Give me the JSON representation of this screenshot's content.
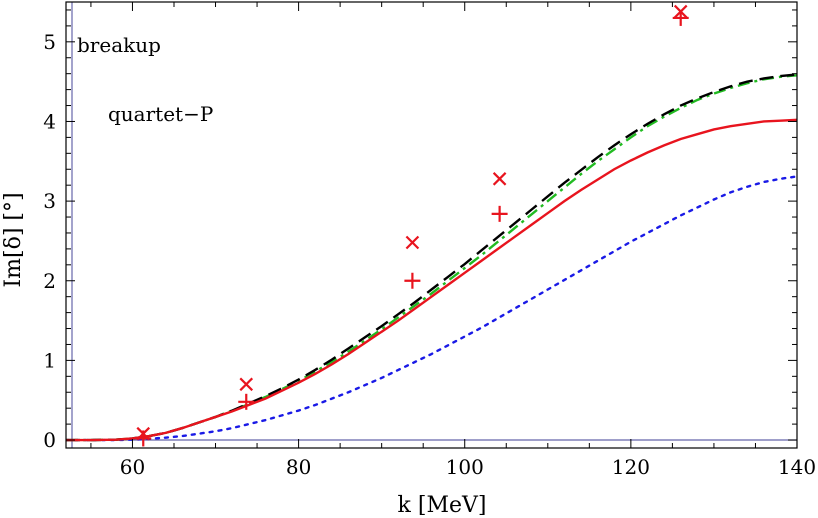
{
  "chart_data": {
    "type": "line",
    "xlabel": "k [MeV]",
    "ylabel": "Im[δ] [°]",
    "xlim": [
      52,
      140
    ],
    "ylim": [
      -0.1,
      5.5
    ],
    "x_ticks": [
      60,
      80,
      100,
      120,
      140
    ],
    "y_ticks": [
      0,
      1,
      2,
      3,
      4,
      5
    ],
    "annotations": [
      "breakup",
      "quartet−P"
    ],
    "colors": {
      "frame": "#000000",
      "reference_lines": "#6666aa",
      "red_solid": "#e8141e",
      "black_dashed": "#000000",
      "green_dashdot": "#22bb22",
      "blue_dotted": "#1a1ae6",
      "markers": "#e8141e"
    },
    "series": [
      {
        "style": "solid",
        "x": [
          52,
          55,
          58,
          60,
          62,
          64,
          66,
          68,
          70,
          72,
          74,
          76,
          78,
          80,
          82,
          84,
          86,
          88,
          90,
          92,
          94,
          96,
          98,
          100,
          102,
          104,
          106,
          108,
          110,
          112,
          114,
          116,
          118,
          120,
          122,
          124,
          126,
          128,
          130,
          132,
          134,
          136,
          138,
          140
        ],
        "y": [
          0.0,
          0.0,
          0.005,
          0.02,
          0.05,
          0.09,
          0.15,
          0.22,
          0.29,
          0.36,
          0.44,
          0.52,
          0.62,
          0.72,
          0.83,
          0.95,
          1.08,
          1.22,
          1.36,
          1.5,
          1.65,
          1.8,
          1.95,
          2.1,
          2.25,
          2.4,
          2.55,
          2.7,
          2.85,
          3.0,
          3.14,
          3.27,
          3.4,
          3.51,
          3.61,
          3.7,
          3.78,
          3.84,
          3.9,
          3.94,
          3.97,
          4.0,
          4.01,
          4.02
        ]
      },
      {
        "style": "dashed",
        "x": [
          52,
          55,
          58,
          60,
          62,
          64,
          66,
          68,
          70,
          72,
          74,
          76,
          78,
          80,
          82,
          84,
          86,
          88,
          90,
          92,
          94,
          96,
          98,
          100,
          102,
          104,
          106,
          108,
          110,
          112,
          114,
          116,
          118,
          120,
          122,
          124,
          126,
          128,
          130,
          132,
          134,
          136,
          138,
          140
        ],
        "y": [
          0.0,
          0.0,
          0.005,
          0.02,
          0.05,
          0.09,
          0.15,
          0.22,
          0.29,
          0.37,
          0.46,
          0.55,
          0.65,
          0.76,
          0.88,
          1.01,
          1.15,
          1.29,
          1.43,
          1.58,
          1.73,
          1.89,
          2.05,
          2.21,
          2.38,
          2.55,
          2.72,
          2.89,
          3.06,
          3.23,
          3.39,
          3.55,
          3.7,
          3.84,
          3.97,
          4.09,
          4.2,
          4.29,
          4.37,
          4.44,
          4.5,
          4.54,
          4.57,
          4.59
        ]
      },
      {
        "style": "dash-dot",
        "x": [
          52,
          55,
          58,
          60,
          62,
          64,
          66,
          68,
          70,
          72,
          74,
          76,
          78,
          80,
          82,
          84,
          86,
          88,
          90,
          92,
          94,
          96,
          98,
          100,
          102,
          104,
          106,
          108,
          110,
          112,
          114,
          116,
          118,
          120,
          122,
          124,
          126,
          128,
          130,
          132,
          134,
          136,
          138,
          140
        ],
        "y": [
          0.0,
          0.0,
          0.005,
          0.02,
          0.05,
          0.09,
          0.15,
          0.22,
          0.29,
          0.37,
          0.45,
          0.54,
          0.64,
          0.74,
          0.86,
          0.98,
          1.11,
          1.25,
          1.39,
          1.54,
          1.69,
          1.84,
          2.0,
          2.16,
          2.32,
          2.49,
          2.66,
          2.83,
          3.0,
          3.17,
          3.34,
          3.5,
          3.65,
          3.8,
          3.94,
          4.06,
          4.17,
          4.27,
          4.35,
          4.42,
          4.48,
          4.53,
          4.56,
          4.58
        ]
      },
      {
        "style": "dotted",
        "x": [
          52,
          55,
          58,
          60,
          62,
          64,
          66,
          68,
          70,
          72,
          74,
          76,
          78,
          80,
          82,
          84,
          86,
          88,
          90,
          92,
          94,
          96,
          98,
          100,
          102,
          104,
          106,
          108,
          110,
          112,
          114,
          116,
          118,
          120,
          122,
          124,
          126,
          128,
          130,
          132,
          134,
          136,
          138,
          140
        ],
        "y": [
          0.0,
          0.0,
          0.0,
          0.005,
          0.015,
          0.03,
          0.05,
          0.08,
          0.11,
          0.15,
          0.2,
          0.25,
          0.31,
          0.37,
          0.44,
          0.52,
          0.6,
          0.69,
          0.78,
          0.88,
          0.98,
          1.08,
          1.19,
          1.3,
          1.41,
          1.53,
          1.65,
          1.77,
          1.89,
          2.01,
          2.13,
          2.25,
          2.37,
          2.49,
          2.6,
          2.71,
          2.82,
          2.92,
          3.02,
          3.11,
          3.18,
          3.24,
          3.28,
          3.31
        ]
      }
    ],
    "markers_x": [
      {
        "x": 61.3,
        "y": 0.08
      },
      {
        "x": 73.7,
        "y": 0.7
      },
      {
        "x": 93.7,
        "y": 2.48
      },
      {
        "x": 104.2,
        "y": 3.28
      },
      {
        "x": 126.0,
        "y": 5.38
      }
    ],
    "markers_plus": [
      {
        "x": 61.3,
        "y": 0.02
      },
      {
        "x": 73.7,
        "y": 0.48
      },
      {
        "x": 93.7,
        "y": 2.0
      },
      {
        "x": 104.2,
        "y": 2.84
      },
      {
        "x": 126.0,
        "y": 5.3
      }
    ]
  }
}
